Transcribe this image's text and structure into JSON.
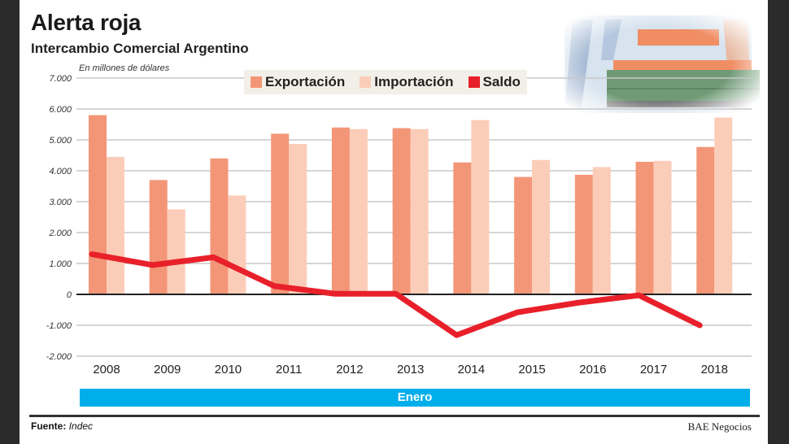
{
  "header": {
    "title": "Alerta roja",
    "subtitle": "Intercambio Comercial Argentino",
    "unit_note": "En millones de dólares"
  },
  "legend": [
    {
      "label": "Exportación",
      "color": "#f39677"
    },
    {
      "label": "Importación",
      "color": "#fbcdb8"
    },
    {
      "label": "Saldo",
      "color": "#e8202a"
    }
  ],
  "period_band": {
    "label": "Enero",
    "color": "#00aeea"
  },
  "footer": {
    "source_label": "Fuente:",
    "source_value": "Indec",
    "brand": "BAE Negocios"
  },
  "chart_data": {
    "type": "bar",
    "title": "Alerta roja",
    "subtitle": "Intercambio Comercial Argentino",
    "ylabel": "En millones de dólares",
    "xlabel": "Enero",
    "ylim": [
      -2000,
      7000
    ],
    "grid": true,
    "legend_position": "top",
    "yticks": [
      7000,
      6000,
      5000,
      4000,
      3000,
      2000,
      1000,
      0,
      -1000,
      -2000
    ],
    "ytick_labels": [
      "7.000",
      "6.000",
      "5.000",
      "4.000",
      "3.000",
      "2.000",
      "1.000",
      "0",
      "-1.000",
      "-2.000"
    ],
    "categories": [
      "2008",
      "2009",
      "2010",
      "2011",
      "2012",
      "2013",
      "2014",
      "2015",
      "2016",
      "2017",
      "2018"
    ],
    "series": [
      {
        "name": "Exportación",
        "type": "bar",
        "color": "#f39677",
        "values": [
          5800,
          3700,
          4400,
          5200,
          5400,
          5380,
          4270,
          3800,
          3870,
          4290,
          4770
        ]
      },
      {
        "name": "Importación",
        "type": "bar",
        "color": "#fbcdb8",
        "values": [
          4450,
          2750,
          3200,
          4870,
          5350,
          5350,
          5640,
          4350,
          4120,
          4320,
          5720
        ]
      },
      {
        "name": "Saldo",
        "type": "line",
        "color": "#e8202a",
        "values": [
          1300,
          950,
          1200,
          270,
          20,
          20,
          -1320,
          -580,
          -270,
          -30,
          -1000
        ]
      }
    ]
  }
}
